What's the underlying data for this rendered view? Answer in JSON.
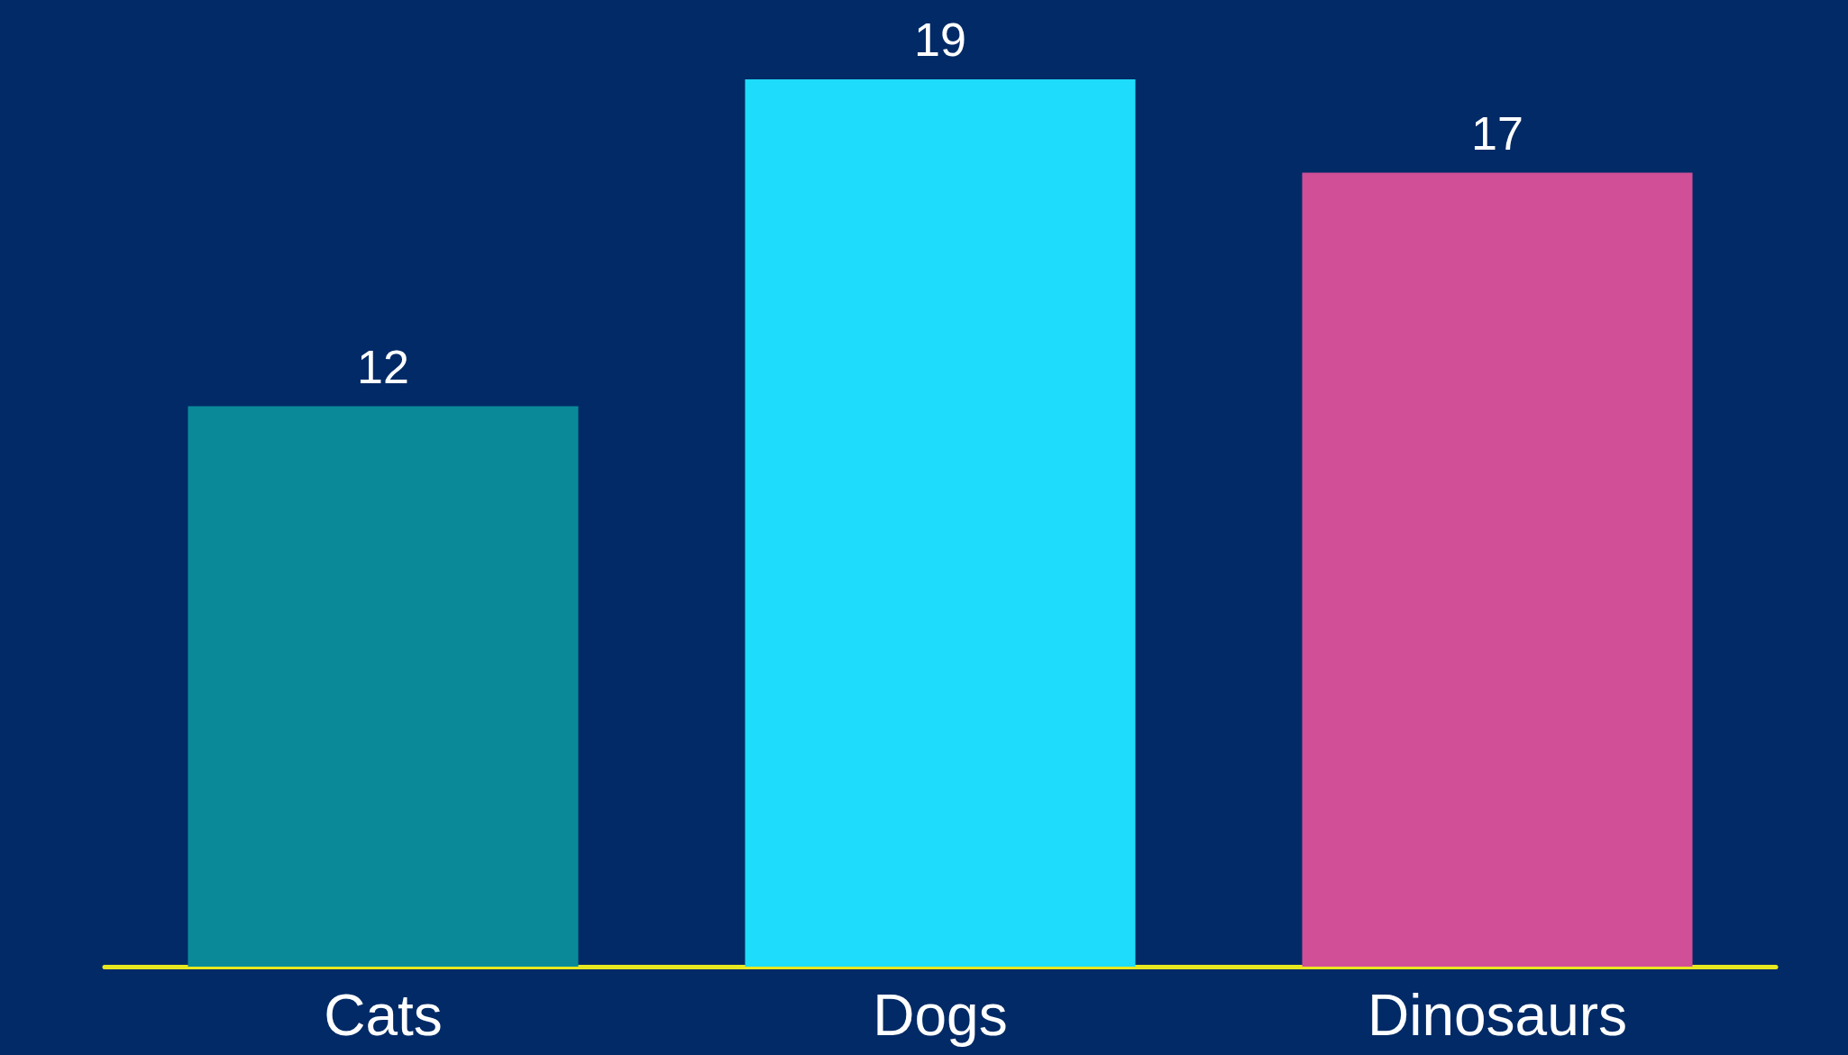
{
  "chart_data": {
    "type": "bar",
    "categories": [
      "Cats",
      "Dogs",
      "Dinosaurs"
    ],
    "values": [
      12,
      19,
      17
    ],
    "colors": [
      "#0a8a99",
      "#1edcfc",
      "#d04f97"
    ],
    "data_labels": true
  }
}
